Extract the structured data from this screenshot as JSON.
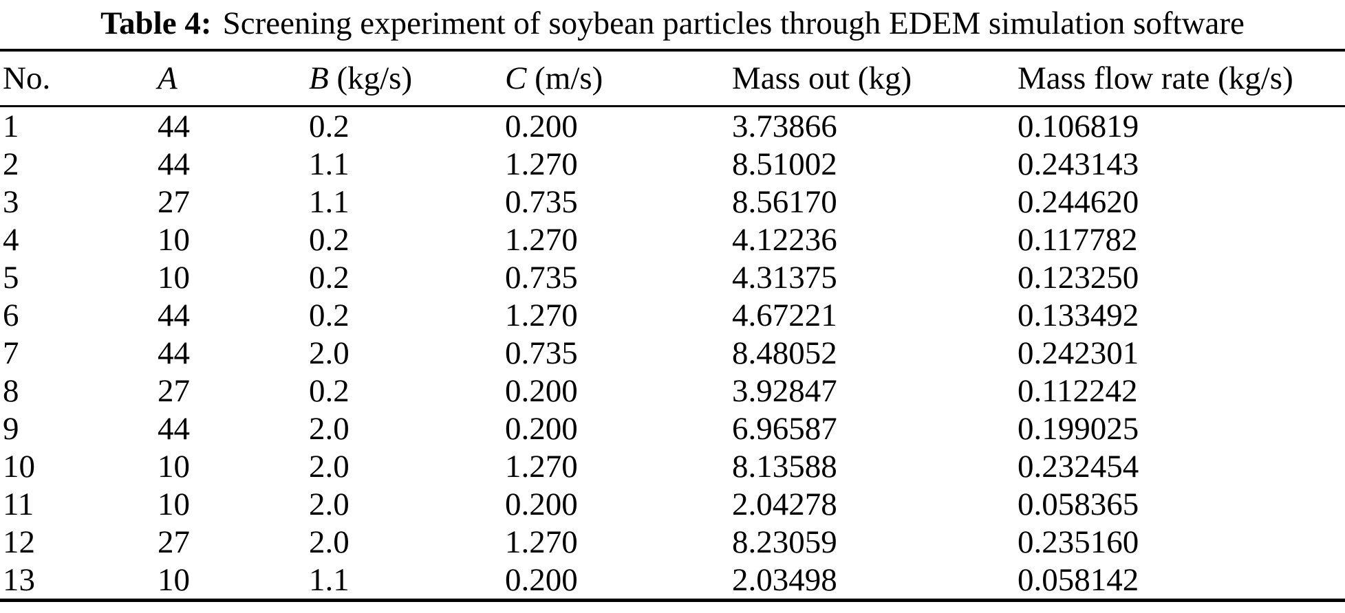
{
  "table": {
    "title_label": "Table 4:",
    "title_text": "Screening experiment of soybean particles through EDEM simulation software",
    "columns": [
      {
        "key": "no",
        "label": "No.",
        "unit": "",
        "italic": false
      },
      {
        "key": "a",
        "label": "A",
        "unit": "",
        "italic": true
      },
      {
        "key": "b",
        "label": "B",
        "unit": " (kg/s)",
        "italic": true
      },
      {
        "key": "c",
        "label": "C",
        "unit": " (m/s)",
        "italic": true
      },
      {
        "key": "mass_out",
        "label": "Mass out (kg)",
        "unit": "",
        "italic": false
      },
      {
        "key": "mass_flow_rate",
        "label": "Mass flow rate (kg/s)",
        "unit": "",
        "italic": false
      }
    ],
    "rows": [
      [
        "1",
        "44",
        "0.2",
        "0.200",
        "3.73866",
        "0.106819"
      ],
      [
        "2",
        "44",
        "1.1",
        "1.270",
        "8.51002",
        "0.243143"
      ],
      [
        "3",
        "27",
        "1.1",
        "0.735",
        "8.56170",
        "0.244620"
      ],
      [
        "4",
        "10",
        "0.2",
        "1.270",
        "4.12236",
        "0.117782"
      ],
      [
        "5",
        "10",
        "0.2",
        "0.735",
        "4.31375",
        "0.123250"
      ],
      [
        "6",
        "44",
        "0.2",
        "1.270",
        "4.67221",
        "0.133492"
      ],
      [
        "7",
        "44",
        "2.0",
        "0.735",
        "8.48052",
        "0.242301"
      ],
      [
        "8",
        "27",
        "0.2",
        "0.200",
        "3.92847",
        "0.112242"
      ],
      [
        "9",
        "44",
        "2.0",
        "0.200",
        "6.96587",
        "0.199025"
      ],
      [
        "10",
        "10",
        "2.0",
        "1.270",
        "8.13588",
        "0.232454"
      ],
      [
        "11",
        "10",
        "2.0",
        "0.200",
        "2.04278",
        "0.058365"
      ],
      [
        "12",
        "27",
        "2.0",
        "1.270",
        "8.23059",
        "0.235160"
      ],
      [
        "13",
        "10",
        "1.1",
        "0.200",
        "2.03498",
        "0.058142"
      ]
    ]
  }
}
